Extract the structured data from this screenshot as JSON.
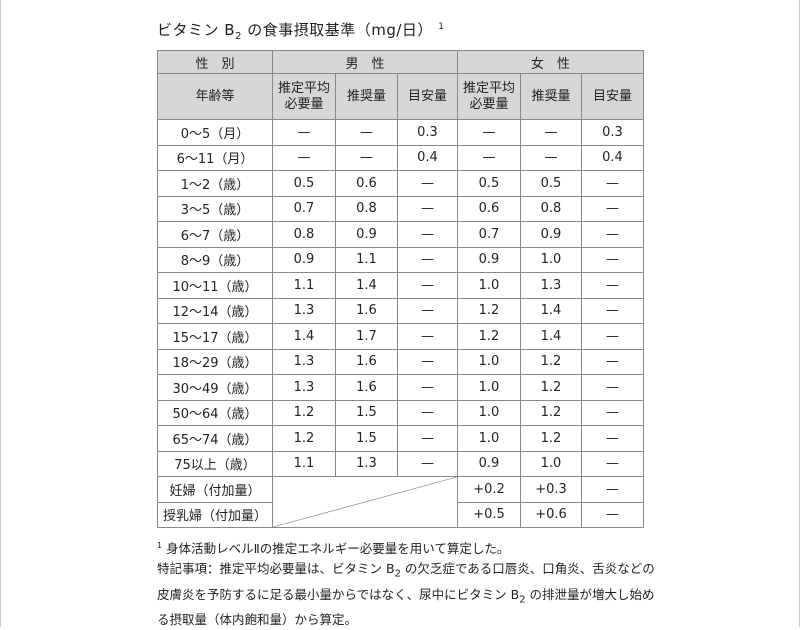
{
  "title": {
    "main": "ビタミン B",
    "sub": "2",
    "rest": " の食事摂取基準（mg/日）",
    "sup": "1"
  },
  "header": {
    "sex": "性　別",
    "male": "男　性",
    "female": "女　性",
    "age": "年齢等",
    "ear": "推定平均必要量",
    "ear1": "推定平均",
    "ear2": "必要量",
    "rda": "推奨量",
    "ai": "目安量"
  },
  "rows": [
    [
      "0～5（月）",
      "—",
      "—",
      "0.3",
      "—",
      "—",
      "0.3"
    ],
    [
      "6～11（月）",
      "—",
      "—",
      "0.4",
      "—",
      "—",
      "0.4"
    ],
    [
      "1～2（歳）",
      "0.5",
      "0.6",
      "—",
      "0.5",
      "0.5",
      "—"
    ],
    [
      "3～5（歳）",
      "0.7",
      "0.8",
      "—",
      "0.6",
      "0.8",
      "—"
    ],
    [
      "6～7（歳）",
      "0.8",
      "0.9",
      "—",
      "0.7",
      "0.9",
      "—"
    ],
    [
      "8～9（歳）",
      "0.9",
      "1.1",
      "—",
      "0.9",
      "1.0",
      "—"
    ],
    [
      "10～11（歳）",
      "1.1",
      "1.4",
      "—",
      "1.0",
      "1.3",
      "—"
    ],
    [
      "12～14（歳）",
      "1.3",
      "1.6",
      "—",
      "1.2",
      "1.4",
      "—"
    ],
    [
      "15～17（歳）",
      "1.4",
      "1.7",
      "—",
      "1.2",
      "1.4",
      "—"
    ],
    [
      "18～29（歳）",
      "1.3",
      "1.6",
      "—",
      "1.0",
      "1.2",
      "—"
    ],
    [
      "30～49（歳）",
      "1.3",
      "1.6",
      "—",
      "1.0",
      "1.2",
      "—"
    ],
    [
      "50～64（歳）",
      "1.2",
      "1.5",
      "—",
      "1.0",
      "1.2",
      "—"
    ],
    [
      "65～74（歳）",
      "1.2",
      "1.5",
      "—",
      "1.0",
      "1.2",
      "—"
    ],
    [
      "75以上（歳）",
      "1.1",
      "1.3",
      "—",
      "0.9",
      "1.0",
      "—"
    ]
  ],
  "extra": [
    [
      "妊婦（付加量）",
      "+0.2",
      "+0.3",
      "—"
    ],
    [
      "授乳婦（付加量）",
      "+0.5",
      "+0.6",
      "—"
    ]
  ],
  "notes": {
    "fn_mark": "1",
    "fn": " 身体活動レベルⅡの推定エネルギー必要量を用いて算定した。",
    "special_a": "特記事項：推定平均必要量は、ビタミン B",
    "special_sub": "2",
    "special_b": " の欠乏症である口唇炎、口角炎、舌炎などの皮膚炎を予防するに足る最小量からではなく、尿中にビタミン B",
    "special_sub2": "2",
    "special_c": " の排泄量が増大し始める摂取量（体内飽和量）から算定。"
  }
}
